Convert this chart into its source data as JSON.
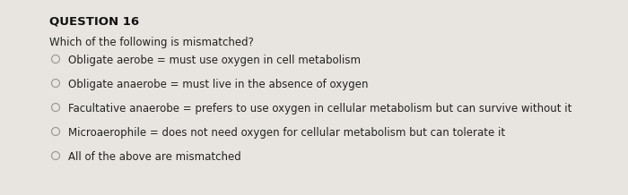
{
  "title": "QUESTION 16",
  "question": "Which of the following is mismatched?",
  "options": [
    "Obligate aerobe = must use oxygen in cell metabolism",
    "Obligate anaerobe = must live in the absence of oxygen",
    "Facultative anaerobe = prefers to use oxygen in cellular metabolism but can survive without it",
    "Microaerophile = does not need oxygen for cellular metabolism but can tolerate it",
    "All of the above are mismatched"
  ],
  "background_color": "#e8e5e0",
  "title_fontsize": 9.5,
  "question_fontsize": 8.5,
  "option_fontsize": 8.5,
  "title_color": "#111111",
  "text_color": "#222222",
  "circle_color": "#999999"
}
